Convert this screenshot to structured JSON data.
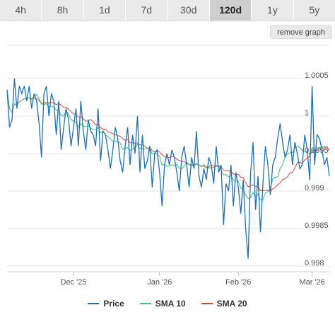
{
  "tabs": [
    {
      "label": "4h",
      "active": false
    },
    {
      "label": "8h",
      "active": false
    },
    {
      "label": "1d",
      "active": false
    },
    {
      "label": "7d",
      "active": false
    },
    {
      "label": "30d",
      "active": false
    },
    {
      "label": "120d",
      "active": true
    },
    {
      "label": "1y",
      "active": false
    },
    {
      "label": "5y",
      "active": false
    }
  ],
  "remove_graph_label": "remove graph",
  "legend": [
    {
      "label": "Price",
      "color": "#1f6fb2"
    },
    {
      "label": "SMA 10",
      "color": "#3ec07a"
    },
    {
      "label": "SMA 20",
      "color": "#e0453c"
    }
  ],
  "chart_data": {
    "type": "line",
    "ylim": [
      0.998,
      1.0006
    ],
    "y_ticks": [
      {
        "value": 1.0005,
        "label": "1.0005"
      },
      {
        "value": 1.0,
        "label": "1"
      },
      {
        "value": 0.9995,
        "label": "0.9995"
      },
      {
        "value": 0.999,
        "label": "0.999"
      },
      {
        "value": 0.9985,
        "label": "0.9985"
      },
      {
        "value": 0.998,
        "label": "0.998"
      }
    ],
    "x_ticks": [
      {
        "index": 27,
        "label": "Dec '25"
      },
      {
        "index": 62,
        "label": "Jan '26"
      },
      {
        "index": 94,
        "label": "Feb '26"
      },
      {
        "index": 124,
        "label": "Mar '26"
      }
    ],
    "series": [
      {
        "name": "Price",
        "color": "#1f6fb2",
        "values": [
          1.00035,
          0.99985,
          0.99995,
          1.0005,
          1.0001,
          1.0004,
          1.0003,
          1.0004,
          1.0002,
          1.0004,
          1.0001,
          1.0003,
          1.0002,
          0.9999,
          0.99945,
          1.0003,
          1.0004,
          1.0,
          1.0003,
          1.0002,
          0.99975,
          1.0002,
          0.99955,
          0.99985,
          1.0001,
          0.99995,
          0.9996,
          0.99985,
          1.0001,
          0.9996,
          1.0002,
          0.9998,
          0.99955,
          0.99995,
          0.9998,
          0.99975,
          0.9996,
          1.0001,
          0.9994,
          0.9998,
          0.99975,
          0.99955,
          0.9993,
          0.99955,
          0.99985,
          0.9997,
          0.9994,
          0.99925,
          0.9996,
          0.99985,
          0.99935,
          0.99975,
          0.9995,
          1.0,
          0.99925,
          0.99975,
          0.9993,
          0.9994,
          0.9996,
          0.99905,
          0.9995,
          0.99955,
          0.99925,
          0.9988,
          0.99935,
          0.9995,
          0.99935,
          0.99955,
          0.99945,
          0.99925,
          0.999,
          0.99945,
          0.9996,
          0.99935,
          0.99905,
          0.99945,
          0.9993,
          0.9998,
          0.9992,
          0.99905,
          0.9993,
          0.99915,
          0.99945,
          0.99935,
          0.9991,
          0.9996,
          0.99925,
          0.99935,
          0.99855,
          0.9991,
          0.999,
          0.99935,
          0.9988,
          0.99925,
          0.99905,
          0.9987,
          0.99915,
          0.9985,
          0.9981,
          0.99925,
          0.99965,
          0.99875,
          0.9992,
          0.99845,
          0.9991,
          0.9996,
          0.99935,
          0.99895,
          0.99935,
          0.99945,
          0.9997,
          0.9999,
          0.99965,
          0.99945,
          0.99955,
          0.99975,
          0.99935,
          0.99965,
          0.9995,
          0.9993,
          0.99935,
          0.99975,
          0.99955,
          0.99915,
          1.0004,
          0.99935,
          0.99975,
          0.9997,
          0.99955,
          0.99935,
          0.99945,
          0.9992
        ],
        "role": "price"
      }
    ]
  }
}
